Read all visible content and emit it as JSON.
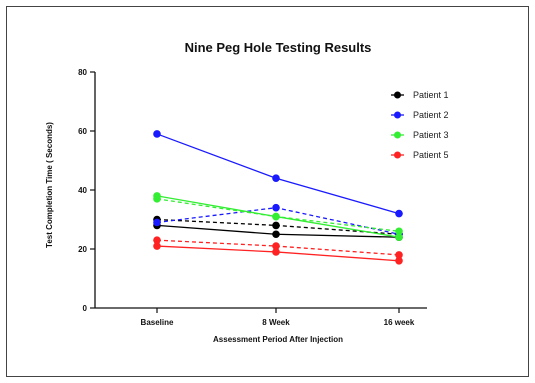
{
  "chart_data": {
    "type": "line",
    "title": "Nine Peg Hole Testing Results",
    "xlabel": "Assessment Period After Injection",
    "ylabel": "Test Completion Time ( Seconds)",
    "categories": [
      "Baseline",
      "8 Week",
      "16 week"
    ],
    "ylim": [
      0,
      80
    ],
    "yticks": [
      0,
      20,
      40,
      60,
      80
    ],
    "grid": false,
    "legend_position": "top-right",
    "series": [
      {
        "name": "Patient 1",
        "color": "#000000",
        "solid": [
          28,
          25,
          24
        ],
        "dashed": [
          30,
          28,
          25
        ]
      },
      {
        "name": "Patient 2",
        "color": "#1a1aff",
        "solid": [
          59,
          44,
          32
        ],
        "dashed": [
          29,
          34,
          25
        ]
      },
      {
        "name": "Patient 3",
        "color": "#33ee33",
        "solid": [
          38,
          31,
          24
        ],
        "dashed": [
          37,
          31,
          26
        ]
      },
      {
        "name": "Patient 5",
        "color": "#ff2222",
        "solid": [
          21,
          19,
          16
        ],
        "dashed": [
          23,
          21,
          18
        ]
      }
    ]
  }
}
